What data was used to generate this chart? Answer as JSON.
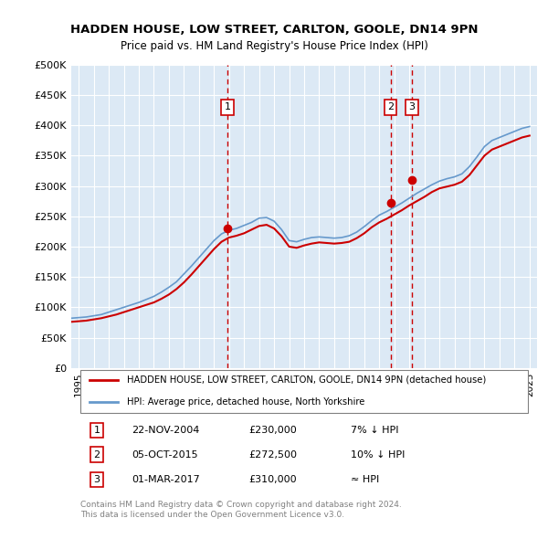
{
  "title": "HADDEN HOUSE, LOW STREET, CARLTON, GOOLE, DN14 9PN",
  "subtitle": "Price paid vs. HM Land Registry's House Price Index (HPI)",
  "background_color": "#dce9f5",
  "plot_bg_color": "#dce9f5",
  "ylim": [
    0,
    500000
  ],
  "yticks": [
    0,
    50000,
    100000,
    150000,
    200000,
    250000,
    300000,
    350000,
    400000,
    450000,
    500000
  ],
  "ytick_labels": [
    "£0",
    "£50K",
    "£100K",
    "£150K",
    "£200K",
    "£250K",
    "£300K",
    "£350K",
    "£400K",
    "£450K",
    "£500K"
  ],
  "xlim_start": 1994.5,
  "xlim_end": 2025.5,
  "xtick_years": [
    1995,
    1996,
    1997,
    1998,
    1999,
    2000,
    2001,
    2002,
    2003,
    2004,
    2005,
    2006,
    2007,
    2008,
    2009,
    2010,
    2011,
    2012,
    2013,
    2014,
    2015,
    2016,
    2017,
    2018,
    2019,
    2020,
    2021,
    2022,
    2023,
    2024,
    2025
  ],
  "sale_dates": [
    2004.9,
    2015.75,
    2017.17
  ],
  "sale_prices": [
    230000,
    272500,
    310000
  ],
  "sale_labels": [
    "1",
    "2",
    "3"
  ],
  "red_line_color": "#cc0000",
  "blue_line_color": "#6699cc",
  "sale_marker_color": "#cc0000",
  "hpi_line": {
    "x": [
      1994.5,
      1995,
      1995.5,
      1996,
      1996.5,
      1997,
      1997.5,
      1998,
      1998.5,
      1999,
      1999.5,
      2000,
      2000.5,
      2001,
      2001.5,
      2002,
      2002.5,
      2003,
      2003.5,
      2004,
      2004.5,
      2005,
      2005.5,
      2006,
      2006.5,
      2007,
      2007.5,
      2008,
      2008.5,
      2009,
      2009.5,
      2010,
      2010.5,
      2011,
      2011.5,
      2012,
      2012.5,
      2013,
      2013.5,
      2014,
      2014.5,
      2015,
      2015.5,
      2016,
      2016.5,
      2017,
      2017.5,
      2018,
      2018.5,
      2019,
      2019.5,
      2020,
      2020.5,
      2021,
      2021.5,
      2022,
      2022.5,
      2023,
      2023.5,
      2024,
      2024.5,
      2025
    ],
    "y": [
      82000,
      83000,
      84000,
      86000,
      88000,
      92000,
      96000,
      100000,
      104000,
      108000,
      113000,
      118000,
      125000,
      133000,
      142000,
      155000,
      168000,
      182000,
      196000,
      210000,
      221000,
      227000,
      230000,
      235000,
      240000,
      247000,
      248000,
      242000,
      228000,
      210000,
      208000,
      212000,
      215000,
      216000,
      215000,
      214000,
      215000,
      218000,
      224000,
      233000,
      243000,
      252000,
      258000,
      265000,
      272000,
      280000,
      288000,
      295000,
      302000,
      308000,
      312000,
      315000,
      320000,
      332000,
      348000,
      365000,
      375000,
      380000,
      385000,
      390000,
      395000,
      398000
    ]
  },
  "hpi_red_line": {
    "x": [
      1994.5,
      1995,
      1995.5,
      1996,
      1996.5,
      1997,
      1997.5,
      1998,
      1998.5,
      1999,
      1999.5,
      2000,
      2000.5,
      2001,
      2001.5,
      2002,
      2002.5,
      2003,
      2003.5,
      2004,
      2004.5,
      2005,
      2005.5,
      2006,
      2006.5,
      2007,
      2007.5,
      2008,
      2008.5,
      2009,
      2009.5,
      2010,
      2010.5,
      2011,
      2011.5,
      2012,
      2012.5,
      2013,
      2013.5,
      2014,
      2014.5,
      2015,
      2015.5,
      2016,
      2016.5,
      2017,
      2017.5,
      2018,
      2018.5,
      2019,
      2019.5,
      2020,
      2020.5,
      2021,
      2021.5,
      2022,
      2022.5,
      2023,
      2023.5,
      2024,
      2024.5,
      2025
    ],
    "y": [
      76000,
      77000,
      78000,
      80000,
      82000,
      85000,
      88000,
      92000,
      96000,
      100000,
      104000,
      108000,
      114000,
      121000,
      130000,
      141000,
      154000,
      168000,
      182000,
      196000,
      208000,
      215000,
      218000,
      222000,
      228000,
      234000,
      236000,
      230000,
      217000,
      200000,
      198000,
      202000,
      205000,
      207000,
      206000,
      205000,
      206000,
      208000,
      214000,
      222000,
      232000,
      240000,
      246000,
      253000,
      260000,
      268000,
      275000,
      282000,
      290000,
      296000,
      299000,
      302000,
      307000,
      318000,
      334000,
      350000,
      360000,
      365000,
      370000,
      375000,
      380000,
      383000
    ]
  },
  "legend_entries": [
    "HADDEN HOUSE, LOW STREET, CARLTON, GOOLE, DN14 9PN (detached house)",
    "HPI: Average price, detached house, North Yorkshire"
  ],
  "table_data": [
    [
      "1",
      "22-NOV-2004",
      "£230,000",
      "7% ↓ HPI"
    ],
    [
      "2",
      "05-OCT-2015",
      "£272,500",
      "10% ↓ HPI"
    ],
    [
      "3",
      "01-MAR-2017",
      "£310,000",
      "≈ HPI"
    ]
  ],
  "footnote": "Contains HM Land Registry data © Crown copyright and database right 2024.\nThis data is licensed under the Open Government Licence v3.0.",
  "grid_color": "#ffffff",
  "vline_color": "#cc0000"
}
